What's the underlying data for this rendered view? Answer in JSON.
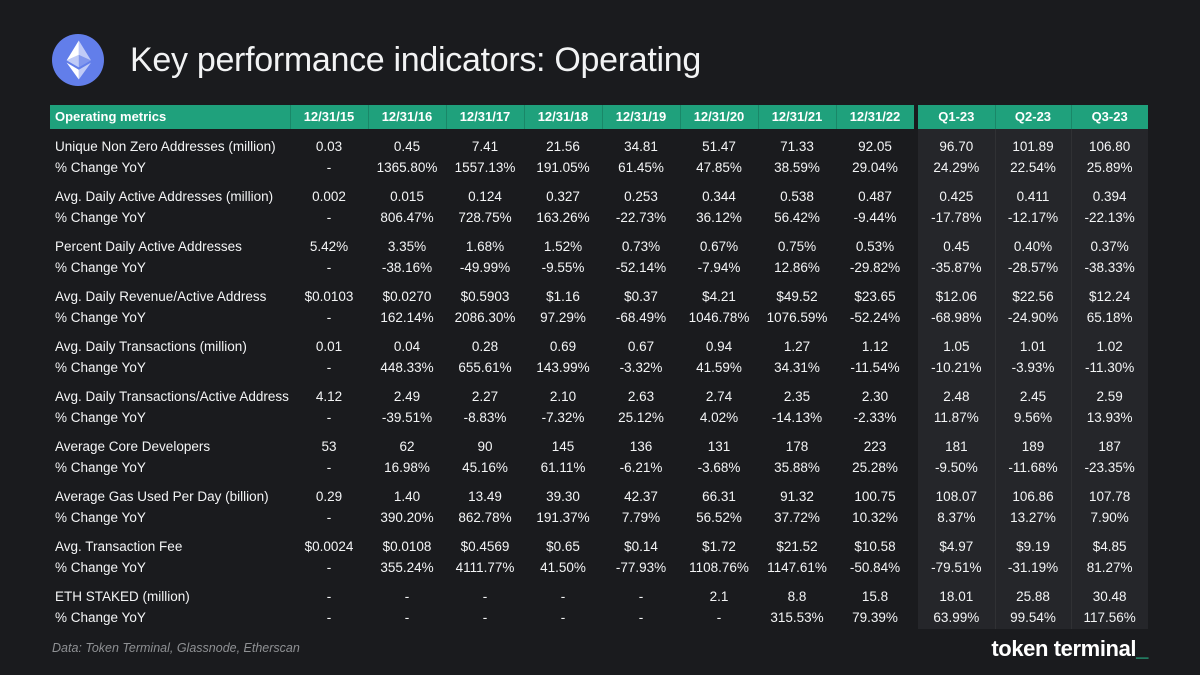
{
  "header": {
    "title": "Key performance indicators: Operating",
    "logo_icon": "ethereum-icon"
  },
  "colors": {
    "page_bg": "#1A1B1E",
    "header_green": "#1FA17C",
    "quarter_panel_bg": "#25262A",
    "accent_green": "#2BD9A2",
    "ethereum_blue": "#627EEA",
    "text": "#F4F5F6",
    "muted_text": "#8F9194"
  },
  "table": {
    "first_col_header": "Operating metrics",
    "date_columns": [
      "12/31/15",
      "12/31/16",
      "12/31/17",
      "12/31/18",
      "12/31/19",
      "12/31/20",
      "12/31/21",
      "12/31/22"
    ],
    "quarter_columns": [
      "Q1-23",
      "Q2-23",
      "Q3-23"
    ],
    "change_row_label": "% Change YoY",
    "rows": [
      {
        "metric": "Unique Non Zero Addresses (million)",
        "values": [
          "0.03",
          "0.45",
          "7.41",
          "21.56",
          "34.81",
          "51.47",
          "71.33",
          "92.05",
          "96.70",
          "101.89",
          "106.80"
        ],
        "changes": [
          "-",
          "1365.80%",
          "1557.13%",
          "191.05%",
          "61.45%",
          "47.85%",
          "38.59%",
          "29.04%",
          "24.29%",
          "22.54%",
          "25.89%"
        ]
      },
      {
        "metric": "Avg. Daily Active Addresses (million)",
        "values": [
          "0.002",
          "0.015",
          "0.124",
          "0.327",
          "0.253",
          "0.344",
          "0.538",
          "0.487",
          "0.425",
          "0.411",
          "0.394"
        ],
        "changes": [
          "-",
          "806.47%",
          "728.75%",
          "163.26%",
          "-22.73%",
          "36.12%",
          "56.42%",
          "-9.44%",
          "-17.78%",
          "-12.17%",
          "-22.13%"
        ]
      },
      {
        "metric": "Percent Daily Active Addresses",
        "values": [
          "5.42%",
          "3.35%",
          "1.68%",
          "1.52%",
          "0.73%",
          "0.67%",
          "0.75%",
          "0.53%",
          "0.45",
          "0.40%",
          "0.37%"
        ],
        "changes": [
          "-",
          "-38.16%",
          "-49.99%",
          "-9.55%",
          "-52.14%",
          "-7.94%",
          "12.86%",
          "-29.82%",
          "-35.87%",
          "-28.57%",
          "-38.33%"
        ]
      },
      {
        "metric": "Avg. Daily Revenue/Active Address",
        "values": [
          "$0.0103",
          "$0.0270",
          "$0.5903",
          "$1.16",
          "$0.37",
          "$4.21",
          "$49.52",
          "$23.65",
          "$12.06",
          "$22.56",
          "$12.24"
        ],
        "changes": [
          "-",
          "162.14%",
          "2086.30%",
          "97.29%",
          "-68.49%",
          "1046.78%",
          "1076.59%",
          "-52.24%",
          "-68.98%",
          "-24.90%",
          "65.18%"
        ]
      },
      {
        "metric": "Avg. Daily Transactions (million)",
        "values": [
          "0.01",
          "0.04",
          "0.28",
          "0.69",
          "0.67",
          "0.94",
          "1.27",
          "1.12",
          "1.05",
          "1.01",
          "1.02"
        ],
        "changes": [
          "-",
          "448.33%",
          "655.61%",
          "143.99%",
          "-3.32%",
          "41.59%",
          "34.31%",
          "-11.54%",
          "-10.21%",
          "-3.93%",
          "-11.30%"
        ]
      },
      {
        "metric": "Avg. Daily Transactions/Active Address",
        "values": [
          "4.12",
          "2.49",
          "2.27",
          "2.10",
          "2.63",
          "2.74",
          "2.35",
          "2.30",
          "2.48",
          "2.45",
          "2.59"
        ],
        "changes": [
          "-",
          "-39.51%",
          "-8.83%",
          "-7.32%",
          "25.12%",
          "4.02%",
          "-14.13%",
          "-2.33%",
          "11.87%",
          "9.56%",
          "13.93%"
        ]
      },
      {
        "metric": "Average Core Developers",
        "values": [
          "53",
          "62",
          "90",
          "145",
          "136",
          "131",
          "178",
          "223",
          "181",
          "189",
          "187"
        ],
        "changes": [
          "-",
          "16.98%",
          "45.16%",
          "61.11%",
          "-6.21%",
          "-3.68%",
          "35.88%",
          "25.28%",
          "-9.50%",
          "-11.68%",
          "-23.35%"
        ]
      },
      {
        "metric": "Average Gas Used Per Day (billion)",
        "values": [
          "0.29",
          "1.40",
          "13.49",
          "39.30",
          "42.37",
          "66.31",
          "91.32",
          "100.75",
          "108.07",
          "106.86",
          "107.78"
        ],
        "changes": [
          "-",
          "390.20%",
          "862.78%",
          "191.37%",
          "7.79%",
          "56.52%",
          "37.72%",
          "10.32%",
          "8.37%",
          "13.27%",
          "7.90%"
        ]
      },
      {
        "metric": "Avg. Transaction Fee",
        "values": [
          "$0.0024",
          "$0.0108",
          "$0.4569",
          "$0.65",
          "$0.14",
          "$1.72",
          "$21.52",
          "$10.58",
          "$4.97",
          "$9.19",
          "$4.85"
        ],
        "changes": [
          "-",
          "355.24%",
          "4111.77%",
          "41.50%",
          "-77.93%",
          "1108.76%",
          "1147.61%",
          "-50.84%",
          "-79.51%",
          "-31.19%",
          "81.27%"
        ]
      },
      {
        "metric": "ETH STAKED (million)",
        "values": [
          "-",
          "-",
          "-",
          "-",
          "-",
          "2.1",
          "8.8",
          "15.8",
          "18.01",
          "25.88",
          "30.48"
        ],
        "changes": [
          "-",
          "-",
          "-",
          "-",
          "-",
          "-",
          "315.53%",
          "79.39%",
          "63.99%",
          "99.54%",
          "117.56%"
        ]
      }
    ]
  },
  "footer": {
    "source": "Data: Token Terminal, Glassnode, Etherscan",
    "brand": "token terminal",
    "cursor": "_"
  }
}
